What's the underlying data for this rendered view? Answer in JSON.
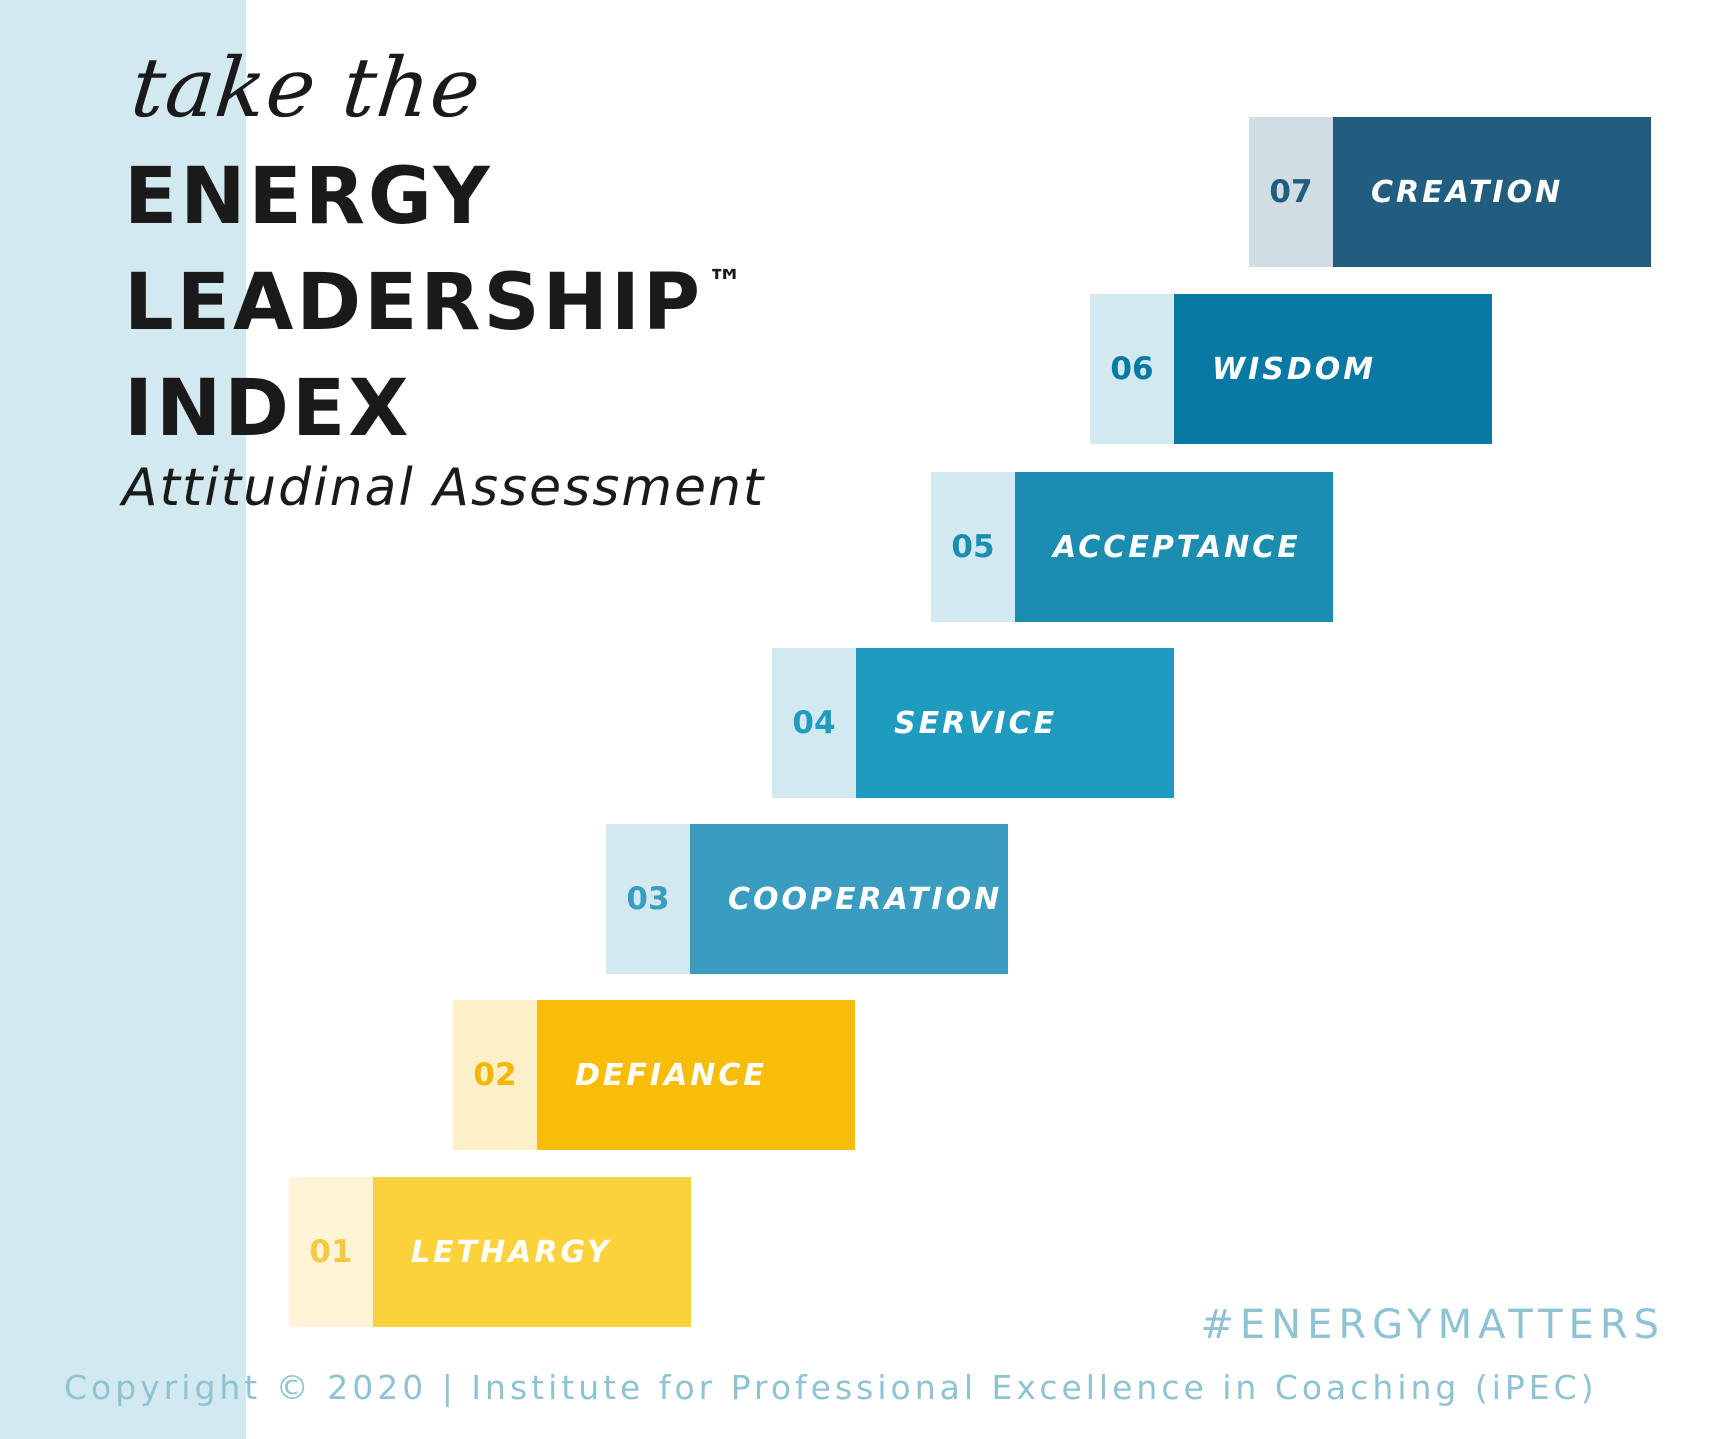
{
  "header": {
    "script_text": "take the",
    "title_lines": [
      "ENERGY",
      "LEADERSHIP",
      "INDEX"
    ],
    "trademark": "™",
    "subtitle": "Attitudinal Assessment"
  },
  "levels": [
    {
      "number": "01",
      "label": "LETHARGY",
      "num_bg": "#fff4d6",
      "num_color": "#f4c842",
      "bar_color": "#fcd23c"
    },
    {
      "number": "02",
      "label": "DEFIANCE",
      "num_bg": "#fdf0c8",
      "num_color": "#f2b705",
      "bar_color": "#f8bd08"
    },
    {
      "number": "03",
      "label": "COOPERATION",
      "num_bg": "#d3e9f0",
      "num_color": "#3a9cc0",
      "bar_color": "#3a9cc0"
    },
    {
      "number": "04",
      "label": "SERVICE",
      "num_bg": "#d3e9f0",
      "num_color": "#1e9bbe",
      "bar_color": "#1e9bbe"
    },
    {
      "number": "05",
      "label": "ACCEPTANCE",
      "num_bg": "#d3e9f0",
      "num_color": "#1b8db0",
      "bar_color": "#1b8db0"
    },
    {
      "number": "06",
      "label": "WISDOM",
      "num_bg": "#d3e9f0",
      "num_color": "#0779a3",
      "bar_color": "#0779a3"
    },
    {
      "number": "07",
      "label": "CREATION",
      "num_bg": "#d0dde5",
      "num_color": "#205d7f",
      "bar_color": "#205d7f"
    }
  ],
  "footer": {
    "hashtag": "#ENERGYMATTERS",
    "copyright": "Copyright © 2020 | Institute for Professional Excellence in Coaching (iPEC)"
  }
}
